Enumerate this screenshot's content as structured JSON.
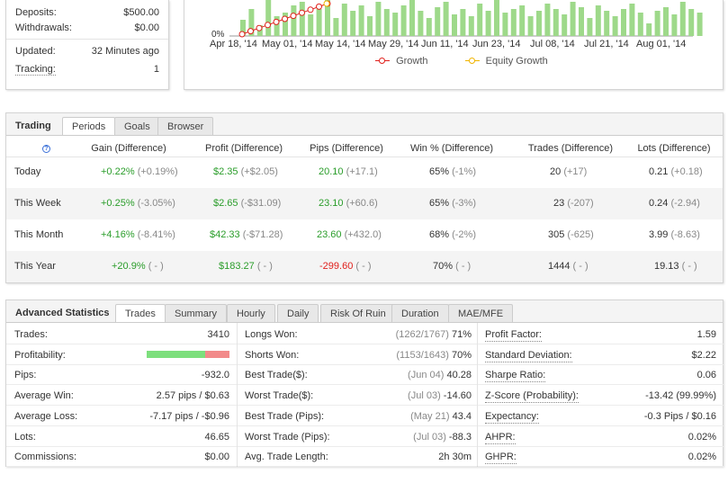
{
  "account": {
    "deposits_label": "Deposits:",
    "deposits_value": "$500.00",
    "withdrawals_label": "Withdrawals:",
    "withdrawals_value": "$0.00",
    "updated_label": "Updated:",
    "updated_value": "32 Minutes ago",
    "tracking_label": "Tracking:",
    "tracking_value": "1"
  },
  "chart": {
    "y_tick": "0%",
    "x_ticks": [
      "Apr 18, '14",
      "May 01, '14",
      "May 14, '14",
      "May 29, '14",
      "Jun 11, '14",
      "Jun 23, '14",
      "Jul 08, '14",
      "Jul 21, '14",
      "Aug 01, '14"
    ],
    "legend": [
      {
        "label": "Growth",
        "color": "#e0201c"
      },
      {
        "label": "Equity Growth",
        "color": "#f0b400"
      }
    ],
    "bar_color": "#9ed98a"
  },
  "trading": {
    "title": "Trading",
    "tabs": [
      "Periods",
      "Goals",
      "Browser"
    ],
    "help": "?",
    "headers": [
      "Gain (Difference)",
      "Profit (Difference)",
      "Pips (Difference)",
      "Win % (Difference)",
      "Trades (Difference)",
      "Lots (Difference)"
    ],
    "rows": [
      {
        "period": "Today",
        "gain": "+0.22%",
        "gain_diff": "(+0.19%)",
        "profit": "$2.35",
        "profit_diff": "(+$2.05)",
        "pips": "20.10",
        "pips_diff": "(+17.1)",
        "win": "65%",
        "win_diff": "(-1%)",
        "trades": "20",
        "trades_diff": "(+17)",
        "lots": "0.21",
        "lots_diff": "(+0.18)"
      },
      {
        "period": "This Week",
        "gain": "+0.25%",
        "gain_diff": "(-3.05%)",
        "profit": "$2.65",
        "profit_diff": "(-$31.09)",
        "pips": "23.10",
        "pips_diff": "(+60.6)",
        "win": "65%",
        "win_diff": "(-3%)",
        "trades": "23",
        "trades_diff": "(-207)",
        "lots": "0.24",
        "lots_diff": "(-2.94)"
      },
      {
        "period": "This Month",
        "gain": "+4.16%",
        "gain_diff": "(-8.41%)",
        "profit": "$42.33",
        "profit_diff": "(-$71.28)",
        "pips": "23.60",
        "pips_diff": "(+432.0)",
        "win": "68%",
        "win_diff": "(-2%)",
        "trades": "305",
        "trades_diff": "(-625)",
        "lots": "3.99",
        "lots_diff": "(-8.63)"
      },
      {
        "period": "This Year",
        "gain": "+20.9%",
        "gain_diff": "( - )",
        "profit": "$183.27",
        "profit_diff": "( - )",
        "pips": "-299.60",
        "pips_diff": "( - )",
        "win": "70%",
        "win_diff": "( - )",
        "trades": "1444",
        "trades_diff": "( - )",
        "lots": "19.13",
        "lots_diff": "( - )"
      }
    ]
  },
  "advanced": {
    "title": "Advanced Statistics",
    "tabs": [
      "Trades",
      "Summary",
      "Hourly",
      "Daily",
      "Risk Of Ruin",
      "Duration",
      "MAE/MFE"
    ],
    "col1": [
      {
        "label": "Trades:",
        "value": "3410"
      },
      {
        "label": "Profitability:",
        "value": ""
      },
      {
        "label": "Pips:",
        "value": "-932.0"
      },
      {
        "label": "Average Win:",
        "value": "2.57 pips / $0.63"
      },
      {
        "label": "Average Loss:",
        "value": "-7.17 pips / -$0.96"
      },
      {
        "label": "Lots:",
        "value": "46.65"
      },
      {
        "label": "Commissions:",
        "value": "$0.00"
      }
    ],
    "profitability_win_fraction": 0.71,
    "col2": [
      {
        "label": "Longs Won:",
        "sub": "(1262/1767)",
        "value": "71%"
      },
      {
        "label": "Shorts Won:",
        "sub": "(1153/1643)",
        "value": "70%"
      },
      {
        "label": "Best Trade($):",
        "sub": "(Jun 04)",
        "value": "40.28"
      },
      {
        "label": "Worst Trade($):",
        "sub": "(Jul 03)",
        "value": "-14.60"
      },
      {
        "label": "Best Trade (Pips):",
        "sub": "(May 21)",
        "value": "43.4"
      },
      {
        "label": "Worst Trade (Pips):",
        "sub": "(Jul 03)",
        "value": "-88.3"
      },
      {
        "label": "Avg. Trade Length:",
        "sub": "",
        "value": "2h 30m"
      }
    ],
    "col3": [
      {
        "label": "Profit Factor:",
        "value": "1.59"
      },
      {
        "label": "Standard Deviation:",
        "value": "$2.22"
      },
      {
        "label": "Sharpe Ratio:",
        "value": "0.06"
      },
      {
        "label": "Z-Score (Probability):",
        "value": "-13.42 (99.99%)"
      },
      {
        "label": "Expectancy:",
        "value": "-0.3 Pips / $0.16"
      },
      {
        "label": "AHPR:",
        "value": "0.02%"
      },
      {
        "label": "GHPR:",
        "value": "0.02%"
      }
    ]
  }
}
